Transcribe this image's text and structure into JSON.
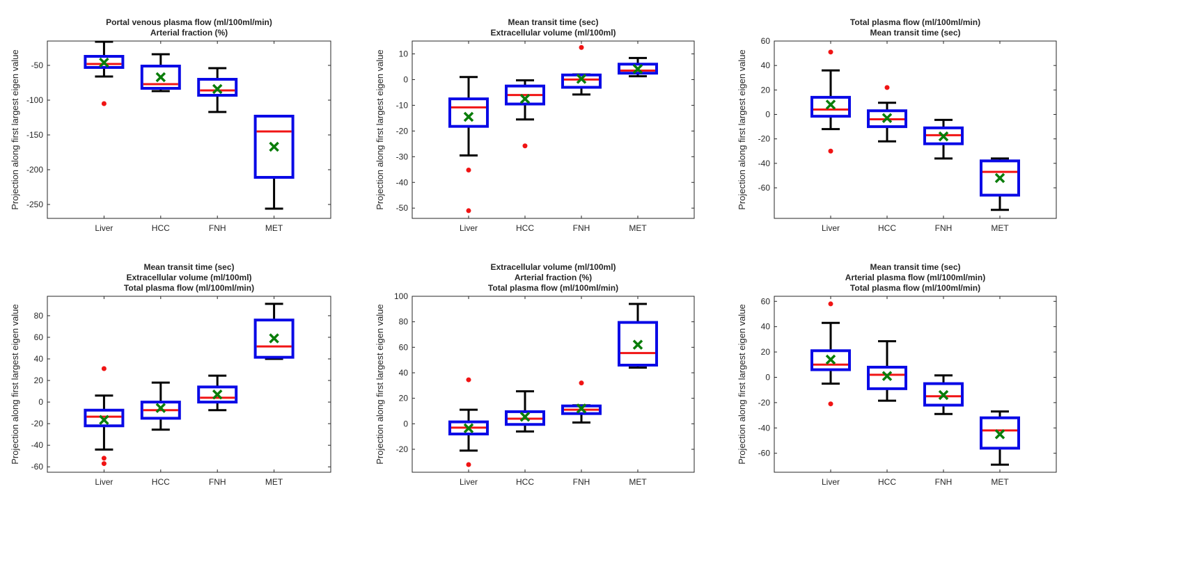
{
  "chart_data": [
    {
      "type": "boxplot",
      "title": [
        "Portal venous plasma flow (ml/100ml/min)",
        "Arterial fraction (%)"
      ],
      "ylabel": "Projection along first largest eigen value",
      "categories": [
        "Liver",
        "HCC",
        "FNH",
        "MET"
      ],
      "ylim": [
        -270,
        -15
      ],
      "yticks": [
        -250,
        -200,
        -150,
        -100,
        -50
      ],
      "boxes": [
        {
          "min": -66,
          "q1": -53,
          "median": -48,
          "q3": -37,
          "max": -16,
          "mean": -46,
          "outliers": [
            -105
          ]
        },
        {
          "min": -87,
          "q1": -83,
          "median": -77,
          "q3": -51,
          "max": -34,
          "mean": -67,
          "outliers": []
        },
        {
          "min": -117,
          "q1": -93,
          "median": -86,
          "q3": -70,
          "max": -54,
          "mean": -84,
          "outliers": []
        },
        {
          "min": -256,
          "q1": -211,
          "median": -145,
          "q3": -123,
          "max": -123,
          "mean": -167,
          "outliers": []
        }
      ]
    },
    {
      "type": "boxplot",
      "title": [
        "Mean transit time (sec)",
        "Extracellular volume (ml/100ml)"
      ],
      "ylabel": "Projection along first largest eigen value",
      "categories": [
        "Liver",
        "HCC",
        "FNH",
        "MET"
      ],
      "ylim": [
        -54,
        15
      ],
      "yticks": [
        -50,
        -40,
        -30,
        -20,
        -10,
        0,
        10
      ],
      "boxes": [
        {
          "min": -29.5,
          "q1": -18.2,
          "median": -10.8,
          "q3": -7.5,
          "max": 1,
          "mean": -14.5,
          "outliers": [
            -35.2,
            -51
          ]
        },
        {
          "min": -15.5,
          "q1": -9.5,
          "median": -6,
          "q3": -2.5,
          "max": -0.3,
          "mean": -7.5,
          "outliers": [
            -25.8
          ]
        },
        {
          "min": -5.8,
          "q1": -3,
          "median": 0,
          "q3": 1.8,
          "max": 2,
          "mean": 0.3,
          "outliers": [
            12.5
          ]
        },
        {
          "min": 1.3,
          "q1": 2.5,
          "median": 3.5,
          "q3": 6,
          "max": 8.4,
          "mean": 4.1,
          "outliers": []
        }
      ]
    },
    {
      "type": "boxplot",
      "title": [
        "Total plasma flow (ml/100ml/min)",
        "Mean transit time (sec)"
      ],
      "ylabel": "Projection along first largest eigen value",
      "categories": [
        "Liver",
        "HCC",
        "FNH",
        "MET"
      ],
      "ylim": [
        -85,
        60
      ],
      "yticks": [
        -60,
        -40,
        -20,
        0,
        20,
        40,
        60
      ],
      "boxes": [
        {
          "min": -12,
          "q1": -1.5,
          "median": 4,
          "q3": 14,
          "max": 36,
          "mean": 8,
          "outliers": [
            51,
            -30
          ]
        },
        {
          "min": -22,
          "q1": -10,
          "median": -4,
          "q3": 3,
          "max": 9.5,
          "mean": -3,
          "outliers": [
            22
          ]
        },
        {
          "min": -36,
          "q1": -24,
          "median": -17,
          "q3": -11,
          "max": -4.5,
          "mean": -18,
          "outliers": []
        },
        {
          "min": -78,
          "q1": -66,
          "median": -47,
          "q3": -38,
          "max": -36,
          "mean": -52,
          "outliers": []
        }
      ]
    },
    {
      "type": "boxplot",
      "title": [
        "Mean transit time (sec)",
        "Extracellular volume (ml/100ml)",
        "Total plasma flow (ml/100ml/min)"
      ],
      "ylabel": "Projection along first largest eigen value",
      "categories": [
        "Liver",
        "HCC",
        "FNH",
        "MET"
      ],
      "ylim": [
        -65,
        98
      ],
      "yticks": [
        -60,
        -40,
        -20,
        0,
        20,
        40,
        60,
        80
      ],
      "boxes": [
        {
          "min": -44,
          "q1": -22,
          "median": -13.5,
          "q3": -7.5,
          "max": 6,
          "mean": -16.5,
          "outliers": [
            31,
            -52,
            -57
          ]
        },
        {
          "min": -25.5,
          "q1": -15,
          "median": -7.5,
          "q3": 0,
          "max": 18,
          "mean": -5.5,
          "outliers": []
        },
        {
          "min": -7.5,
          "q1": 0,
          "median": 4,
          "q3": 14,
          "max": 24.5,
          "mean": 7,
          "outliers": []
        },
        {
          "min": 40,
          "q1": 41.5,
          "median": 51.5,
          "q3": 76,
          "max": 91,
          "mean": 59,
          "outliers": []
        }
      ]
    },
    {
      "type": "boxplot",
      "title": [
        "Extracellular volume (ml/100ml)",
        "Arterial fraction (%)",
        "Total plasma flow (ml/100ml/min)"
      ],
      "ylabel": "Projection along first largest eigen value",
      "categories": [
        "Liver",
        "HCC",
        "FNH",
        "MET"
      ],
      "ylim": [
        -38,
        100
      ],
      "yticks": [
        -20,
        0,
        20,
        40,
        60,
        80,
        100
      ],
      "boxes": [
        {
          "min": -21,
          "q1": -8,
          "median": -3,
          "q3": 1.5,
          "max": 11,
          "mean": -3.5,
          "outliers": [
            34.5,
            -32
          ]
        },
        {
          "min": -6,
          "q1": -0.5,
          "median": 4,
          "q3": 9.5,
          "max": 25.5,
          "mean": 5.5,
          "outliers": []
        },
        {
          "min": 1,
          "q1": 8,
          "median": 11,
          "q3": 14,
          "max": 14.5,
          "mean": 12,
          "outliers": [
            32
          ]
        },
        {
          "min": 44,
          "q1": 46,
          "median": 55.5,
          "q3": 79.5,
          "max": 94,
          "mean": 62,
          "outliers": []
        }
      ]
    },
    {
      "type": "boxplot",
      "title": [
        "Mean transit time (sec)",
        "Arterial plasma flow (ml/100ml/min)",
        "Total plasma flow (ml/100ml/min)"
      ],
      "ylabel": "Projection along first largest eigen value",
      "categories": [
        "Liver",
        "HCC",
        "FNH",
        "MET"
      ],
      "ylim": [
        -75,
        64
      ],
      "yticks": [
        -60,
        -40,
        -20,
        0,
        20,
        40,
        60
      ],
      "boxes": [
        {
          "min": -5,
          "q1": 6,
          "median": 10,
          "q3": 21,
          "max": 43,
          "mean": 14,
          "outliers": [
            58,
            -21
          ]
        },
        {
          "min": -18.5,
          "q1": -9,
          "median": 2,
          "q3": 8,
          "max": 28.5,
          "mean": 1,
          "outliers": []
        },
        {
          "min": -29,
          "q1": -22,
          "median": -15,
          "q3": -5,
          "max": 1.5,
          "mean": -14,
          "outliers": []
        },
        {
          "min": -69,
          "q1": -56,
          "median": -42,
          "q3": -32,
          "max": -27,
          "mean": -45,
          "outliers": []
        }
      ]
    }
  ]
}
